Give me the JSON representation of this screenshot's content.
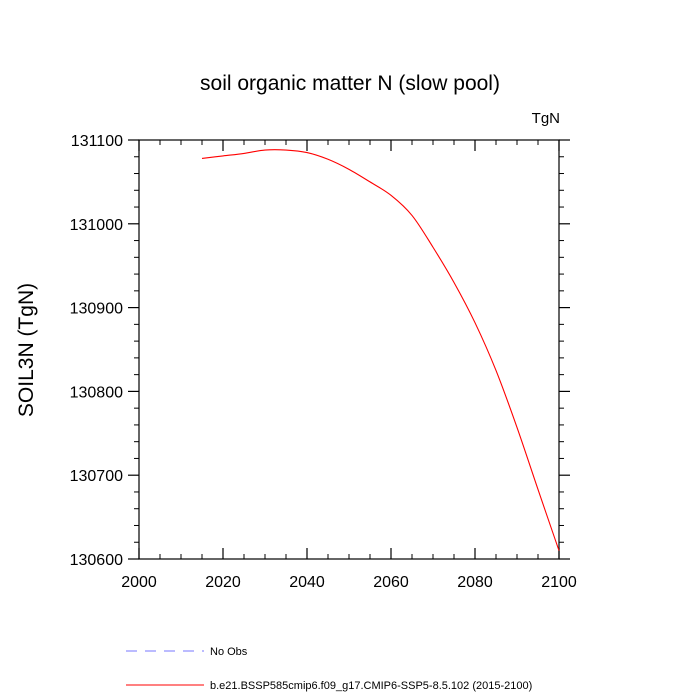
{
  "chart_data": {
    "type": "line",
    "title": "soil organic matter N (slow pool)",
    "units_label": "TgN",
    "xlabel": "",
    "ylabel": "SOIL3N  (TgN)",
    "xlim": [
      2000,
      2100
    ],
    "ylim": [
      130600,
      131100
    ],
    "x_ticks": [
      2000,
      2020,
      2040,
      2060,
      2080,
      2100
    ],
    "x_tick_labels": [
      "2000",
      "2020",
      "2040",
      "2060",
      "2080",
      "2100"
    ],
    "y_ticks": [
      130600,
      130700,
      130800,
      130900,
      131000,
      131100
    ],
    "y_tick_labels": [
      "130600",
      "130700",
      "130800",
      "130900",
      "131000",
      "131100"
    ],
    "grid": false,
    "legend_position": "bottom",
    "series": [
      {
        "name": "b.e21.BSSP585cmip6.f09_g17.CMIP6-SSP5-8.5.102 (2015-2100)",
        "color": "#ff0000",
        "dash": "solid",
        "x": [
          2015,
          2020,
          2025,
          2030,
          2035,
          2040,
          2045,
          2050,
          2055,
          2060,
          2065,
          2070,
          2075,
          2080,
          2085,
          2090,
          2095,
          2100
        ],
        "y": [
          131078,
          131081,
          131084,
          131088,
          131088,
          131085,
          131077,
          131065,
          131050,
          131034,
          131010,
          130972,
          130930,
          130882,
          130825,
          130757,
          130683,
          130610
        ]
      },
      {
        "name": "No Obs",
        "color": "#7777ff",
        "dash": "dashed",
        "x": [],
        "y": []
      }
    ]
  }
}
